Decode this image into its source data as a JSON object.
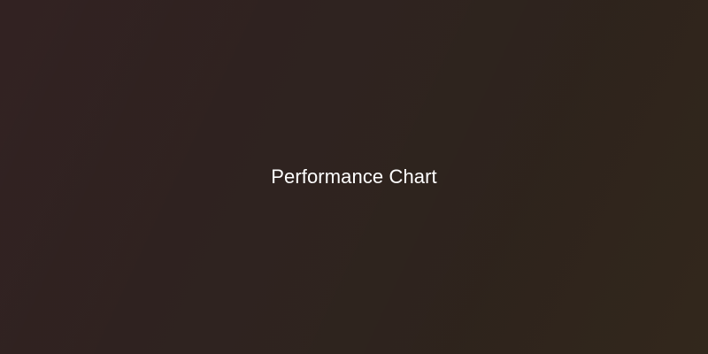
{
  "placeholder": {
    "title": "Performance Chart"
  },
  "colors": {
    "background_start": "#2f1f1f",
    "background_end": "#302519",
    "text": "#ffffff"
  }
}
